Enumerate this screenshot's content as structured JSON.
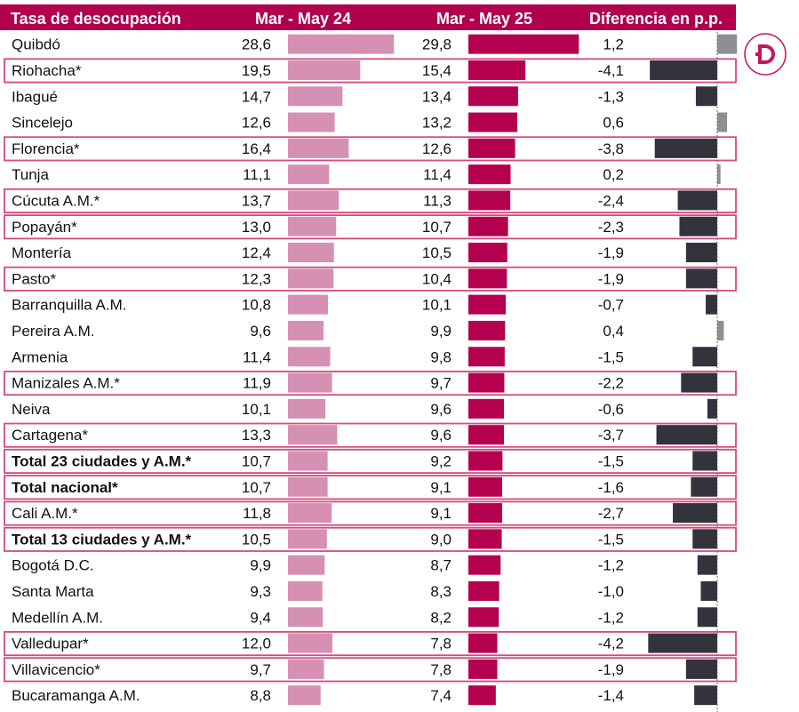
{
  "headers": {
    "city": "Tasa de desocupación",
    "period_1": "Mar - May 24",
    "period_2": "Mar - May 25",
    "difference": "Diferencia en p.p."
  },
  "colors": {
    "header_bg": "#B0004E",
    "bar_period_1": "#D690B4",
    "bar_period_2": "#B5004F",
    "bar_diff_negative": "#33333D",
    "bar_diff_positive": "#8E8E93",
    "highlight_border": "#D6497E",
    "logo_accent": "#C2185B"
  },
  "chart_data": {
    "type": "bar",
    "title": "Tasa de desocupación",
    "series": [
      {
        "name": "Mar - May 24",
        "values": [
          28.6,
          19.5,
          14.7,
          12.6,
          16.4,
          11.1,
          13.7,
          13.0,
          12.4,
          12.3,
          10.8,
          9.6,
          11.4,
          11.9,
          10.1,
          13.3,
          10.7,
          10.7,
          11.8,
          10.5,
          9.9,
          9.3,
          9.4,
          12.0,
          9.7,
          8.8
        ]
      },
      {
        "name": "Mar - May 25",
        "values": [
          29.8,
          15.4,
          13.4,
          13.2,
          12.6,
          11.4,
          11.3,
          10.7,
          10.5,
          10.4,
          10.1,
          9.9,
          9.8,
          9.7,
          9.6,
          9.6,
          9.2,
          9.1,
          9.1,
          9.0,
          8.7,
          8.3,
          8.2,
          7.8,
          7.8,
          7.4
        ]
      },
      {
        "name": "Diferencia en p.p.",
        "values": [
          1.2,
          -4.1,
          -1.3,
          0.6,
          -3.8,
          0.2,
          -2.4,
          -2.3,
          -1.9,
          -1.9,
          -0.7,
          0.4,
          -1.5,
          -2.2,
          -0.6,
          -3.7,
          -1.5,
          -1.6,
          -2.7,
          -1.5,
          -1.2,
          -1.0,
          -1.2,
          -4.2,
          -1.9,
          -1.4
        ]
      }
    ],
    "rows": [
      {
        "city": "Quibdó",
        "v24": "28,6",
        "v25": "29,8",
        "diff": "1,2",
        "highlight": false,
        "bold": false
      },
      {
        "city": "Riohacha*",
        "v24": "19,5",
        "v25": "15,4",
        "diff": "-4,1",
        "highlight": true,
        "bold": false
      },
      {
        "city": "Ibagué",
        "v24": "14,7",
        "v25": "13,4",
        "diff": "-1,3",
        "highlight": false,
        "bold": false
      },
      {
        "city": "Sincelejo",
        "v24": "12,6",
        "v25": "13,2",
        "diff": "0,6",
        "highlight": false,
        "bold": false
      },
      {
        "city": "Florencia*",
        "v24": "16,4",
        "v25": "12,6",
        "diff": "-3,8",
        "highlight": true,
        "bold": false
      },
      {
        "city": "Tunja",
        "v24": "11,1",
        "v25": "11,4",
        "diff": "0,2",
        "highlight": false,
        "bold": false
      },
      {
        "city": "Cúcuta A.M.*",
        "v24": "13,7",
        "v25": "11,3",
        "diff": "-2,4",
        "highlight": true,
        "bold": false
      },
      {
        "city": "Popayán*",
        "v24": "13,0",
        "v25": "10,7",
        "diff": "-2,3",
        "highlight": true,
        "bold": false
      },
      {
        "city": "Montería",
        "v24": "12,4",
        "v25": "10,5",
        "diff": "-1,9",
        "highlight": false,
        "bold": false
      },
      {
        "city": "Pasto*",
        "v24": "12,3",
        "v25": "10,4",
        "diff": "-1,9",
        "highlight": true,
        "bold": false
      },
      {
        "city": "Barranquilla A.M.",
        "v24": "10,8",
        "v25": "10,1",
        "diff": "-0,7",
        "highlight": false,
        "bold": false
      },
      {
        "city": "Pereira A.M.",
        "v24": "9,6",
        "v25": "9,9",
        "diff": "0,4",
        "highlight": false,
        "bold": false
      },
      {
        "city": "Armenia",
        "v24": "11,4",
        "v25": "9,8",
        "diff": "-1,5",
        "highlight": false,
        "bold": false
      },
      {
        "city": "Manizales A.M.*",
        "v24": "11,9",
        "v25": "9,7",
        "diff": "-2,2",
        "highlight": true,
        "bold": false
      },
      {
        "city": "Neiva",
        "v24": "10,1",
        "v25": "9,6",
        "diff": "-0,6",
        "highlight": false,
        "bold": false
      },
      {
        "city": "Cartagena*",
        "v24": "13,3",
        "v25": "9,6",
        "diff": "-3,7",
        "highlight": true,
        "bold": false
      },
      {
        "city": "Total 23 ciudades y A.M.*",
        "v24": "10,7",
        "v25": "9,2",
        "diff": "-1,5",
        "highlight": true,
        "bold": true
      },
      {
        "city": "Total nacional*",
        "v24": "10,7",
        "v25": "9,1",
        "diff": "-1,6",
        "highlight": true,
        "bold": true
      },
      {
        "city": "Cali A.M.*",
        "v24": "11,8",
        "v25": "9,1",
        "diff": "-2,7",
        "highlight": true,
        "bold": false
      },
      {
        "city": "Total 13 ciudades y A.M.*",
        "v24": "10,5",
        "v25": "9,0",
        "diff": "-1,5",
        "highlight": true,
        "bold": true
      },
      {
        "city": "Bogotá D.C.",
        "v24": "9,9",
        "v25": "8,7",
        "diff": "-1,2",
        "highlight": false,
        "bold": false
      },
      {
        "city": "Santa Marta",
        "v24": "9,3",
        "v25": "8,3",
        "diff": "-1,0",
        "highlight": false,
        "bold": false
      },
      {
        "city": "Medellín A.M.",
        "v24": "9,4",
        "v25": "8,2",
        "diff": "-1,2",
        "highlight": false,
        "bold": false
      },
      {
        "city": "Valledupar*",
        "v24": "12,0",
        "v25": "7,8",
        "diff": "-4,2",
        "highlight": true,
        "bold": false
      },
      {
        "city": "Villavicencio*",
        "v24": "9,7",
        "v25": "7,8",
        "diff": "-1,9",
        "highlight": true,
        "bold": false
      },
      {
        "city": "Bucaramanga A.M.",
        "v24": "8,8",
        "v25": "7,4",
        "diff": "-1,4",
        "highlight": false,
        "bold": false
      }
    ]
  },
  "logo": {
    "icon": "d-logo-icon",
    "letter": "D"
  }
}
